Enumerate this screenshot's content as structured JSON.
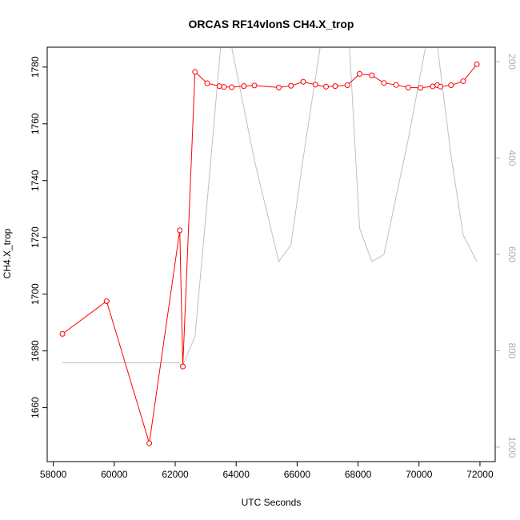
{
  "chart_data": {
    "type": "line",
    "title": "ORCAS RF14vlonS CH4.X_trop",
    "xlabel": "UTC Seconds",
    "ylabel": "CH4.X_trop",
    "xlim": [
      57800,
      72500
    ],
    "ylim": [
      1641,
      1787
    ],
    "y2lim": [
      1030,
      170
    ],
    "y2reversed": true,
    "grid": false,
    "legend": "none",
    "x_ticks": [
      58000,
      60000,
      62000,
      64000,
      66000,
      68000,
      70000,
      72000
    ],
    "y_ticks": [
      1660,
      1680,
      1700,
      1720,
      1740,
      1760,
      1780
    ],
    "y2_ticks": [
      200,
      400,
      600,
      800,
      1000
    ],
    "colors": {
      "series": "#ff0000",
      "secondary": "#c0c0c0",
      "right_axis": "#b0b0b0"
    },
    "series": [
      {
        "axis": "left",
        "style": "line+points",
        "x": [
          58300,
          59750,
          61150,
          62150,
          62250,
          62650,
          63050,
          63450,
          63600,
          63850,
          64250,
          64600,
          65400,
          65800,
          66200,
          66600,
          66950,
          67250,
          67650,
          68050,
          68450,
          68850,
          69250,
          69650,
          70050,
          70450,
          70600,
          70700,
          71050,
          71450,
          71900
        ],
        "y": [
          1686,
          1697.5,
          1647.5,
          1722.5,
          1674.5,
          1778.3,
          1774.3,
          1773.3,
          1773.0,
          1772.9,
          1773.3,
          1773.5,
          1772.8,
          1773.4,
          1774.8,
          1773.8,
          1773.1,
          1773.3,
          1773.6,
          1777.6,
          1777.1,
          1774.4,
          1773.7,
          1772.8,
          1772.7,
          1773.2,
          1773.6,
          1773.1,
          1773.6,
          1775.0,
          1781.0
        ]
      },
      {
        "axis": "right",
        "style": "line",
        "x": [
          58300,
          62100,
          62250,
          62650,
          63050,
          63600,
          64600,
          65400,
          65800,
          66200,
          66950,
          67650,
          68050,
          68450,
          68850,
          69650,
          70450,
          71050,
          71450,
          71900
        ],
        "y": [
          825,
          825,
          830,
          770,
          490,
          90,
          405,
          615,
          580,
          400,
          90,
          90,
          545,
          615,
          600,
          360,
          90,
          395,
          560,
          615
        ]
      }
    ]
  }
}
